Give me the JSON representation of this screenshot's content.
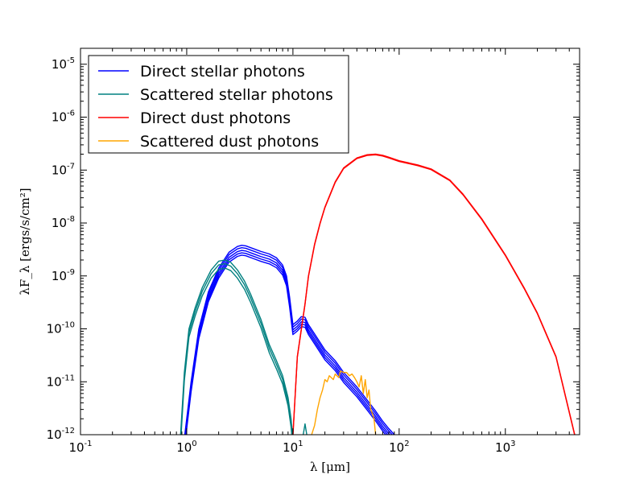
{
  "chart_data": {
    "type": "line",
    "xscale": "log",
    "yscale": "log",
    "xlim": [
      0.1,
      5000
    ],
    "ylim": [
      1e-12,
      2e-05
    ],
    "x_label": "λ [μm]",
    "y_label": "λF_λ [ergs/s/cm²]",
    "x_ticks": [
      {
        "value": 0.1,
        "base": "10",
        "exp": "-1"
      },
      {
        "value": 1,
        "base": "10",
        "exp": "0"
      },
      {
        "value": 10,
        "base": "10",
        "exp": "1"
      },
      {
        "value": 100,
        "base": "10",
        "exp": "2"
      },
      {
        "value": 1000,
        "base": "10",
        "exp": "3"
      }
    ],
    "y_ticks": [
      {
        "value": 1e-12,
        "base": "10",
        "exp": "-12"
      },
      {
        "value": 1e-11,
        "base": "10",
        "exp": "-11"
      },
      {
        "value": 1e-10,
        "base": "10",
        "exp": "-10"
      },
      {
        "value": 1e-09,
        "base": "10",
        "exp": "-9"
      },
      {
        "value": 1e-08,
        "base": "10",
        "exp": "-8"
      },
      {
        "value": 1e-07,
        "base": "10",
        "exp": "-7"
      },
      {
        "value": 1e-06,
        "base": "10",
        "exp": "-6"
      },
      {
        "value": 1e-05,
        "base": "10",
        "exp": "-5"
      }
    ],
    "legend": {
      "position": "upper-left",
      "entries": [
        {
          "label": "Direct stellar photons",
          "color": "#0000ff"
        },
        {
          "label": "Scattered stellar photons",
          "color": "#008080"
        },
        {
          "label": "Direct dust photons",
          "color": "#ff0000"
        },
        {
          "label": "Scattered dust photons",
          "color": "#ffa500"
        }
      ]
    },
    "series": [
      {
        "name": "Direct stellar photons",
        "color": "#0000ff",
        "scales": [
          1.0,
          0.9,
          0.8,
          0.72,
          0.65
        ],
        "x": [
          0.92,
          1.0,
          1.1,
          1.3,
          1.6,
          2.0,
          2.5,
          3.0,
          3.3,
          3.6,
          4.2,
          5.0,
          6.0,
          7.0,
          8.0,
          8.7,
          9.3,
          10.0,
          11.0,
          12.0,
          13.0,
          14.0,
          16.0,
          20.0,
          25.0,
          30.0,
          40.0,
          50.0,
          60.0,
          70.0,
          80.0,
          90.0
        ],
        "y": [
          5e-13,
          2e-12,
          1e-11,
          1e-10,
          5e-10,
          1.4e-09,
          2.8e-09,
          3.6e-09,
          3.8e-09,
          3.7e-09,
          3.3e-09,
          2.9e-09,
          2.6e-09,
          2.2e-09,
          1.6e-09,
          1e-09,
          4e-10,
          1.2e-10,
          1.4e-10,
          1.7e-10,
          1.65e-10,
          1.2e-10,
          8e-11,
          4e-11,
          2.5e-11,
          1.5e-11,
          8e-12,
          4.5e-12,
          2.8e-12,
          1.8e-12,
          1.3e-12,
          1e-12
        ]
      },
      {
        "name": "Scattered stellar photons",
        "color": "#008080",
        "scales": [
          1.0,
          0.85,
          0.7
        ],
        "x": [
          0.87,
          0.95,
          1.05,
          1.2,
          1.4,
          1.7,
          2.0,
          2.3,
          2.6,
          3.0,
          3.5,
          4.0,
          5.0,
          6.0,
          7.0,
          8.0,
          9.0,
          9.6,
          10.0
        ],
        "y": [
          8e-13,
          1.5e-11,
          1e-10,
          2.5e-10,
          6e-10,
          1.3e-09,
          1.9e-09,
          2e-09,
          1.8e-09,
          1.3e-09,
          8e-10,
          4.5e-10,
          1.5e-10,
          5e-11,
          2.5e-11,
          1.3e-11,
          5e-12,
          2e-12,
          8e-13
        ]
      },
      {
        "name": "Scattered stellar photons (tail)",
        "color": "#008080",
        "scales": [
          1.0
        ],
        "x": [
          12.5,
          13.0,
          13.5
        ],
        "y": [
          1e-12,
          1.6e-12,
          1e-12
        ]
      },
      {
        "name": "Direct dust photons",
        "color": "#ff0000",
        "scales": [
          1.0,
          0.97
        ],
        "x": [
          10.0,
          11.0,
          12.0,
          13.0,
          14.0,
          16.0,
          18.0,
          20.0,
          25.0,
          30.0,
          40.0,
          50.0,
          60.0,
          70.0,
          80.0,
          100.0,
          150.0,
          200.0,
          300.0,
          400.0,
          600.0,
          1000.0,
          1500.0,
          2000.0,
          3000.0,
          4500.0
        ],
        "y": [
          1e-12,
          3e-11,
          1e-10,
          3e-10,
          1e-09,
          4e-09,
          1e-08,
          2e-08,
          6e-08,
          1.1e-07,
          1.7e-07,
          1.95e-07,
          2e-07,
          1.9e-07,
          1.75e-07,
          1.5e-07,
          1.25e-07,
          1.05e-07,
          6.5e-08,
          3.5e-08,
          1.2e-08,
          2.5e-09,
          6e-10,
          2e-10,
          3e-11,
          1e-12
        ]
      },
      {
        "name": "Scattered dust photons",
        "color": "#ffa500",
        "scales": [
          1.0
        ],
        "x": [
          15.0,
          16.0,
          17.0,
          18.0,
          19.0,
          20.0,
          21.0,
          22.0,
          24.0,
          25.0,
          27.0,
          28.0,
          30.0,
          32.0,
          34.0,
          36.0,
          38.0,
          40.0,
          42.0,
          44.0,
          46.0,
          48.0,
          50.0,
          52.0,
          54.0,
          56.0,
          58.0,
          60.0
        ],
        "y": [
          1e-12,
          1.5e-12,
          3e-12,
          5e-12,
          7e-12,
          1.1e-11,
          1e-11,
          1.3e-11,
          1.1e-11,
          1.4e-11,
          1.2e-11,
          1.6e-11,
          1.5e-11,
          1.5e-11,
          1.3e-11,
          1.4e-11,
          1.2e-11,
          1e-11,
          8e-12,
          1.3e-11,
          6e-12,
          1.1e-11,
          5e-12,
          7e-12,
          3e-12,
          2.5e-12,
          2e-12,
          1e-12
        ]
      }
    ]
  }
}
